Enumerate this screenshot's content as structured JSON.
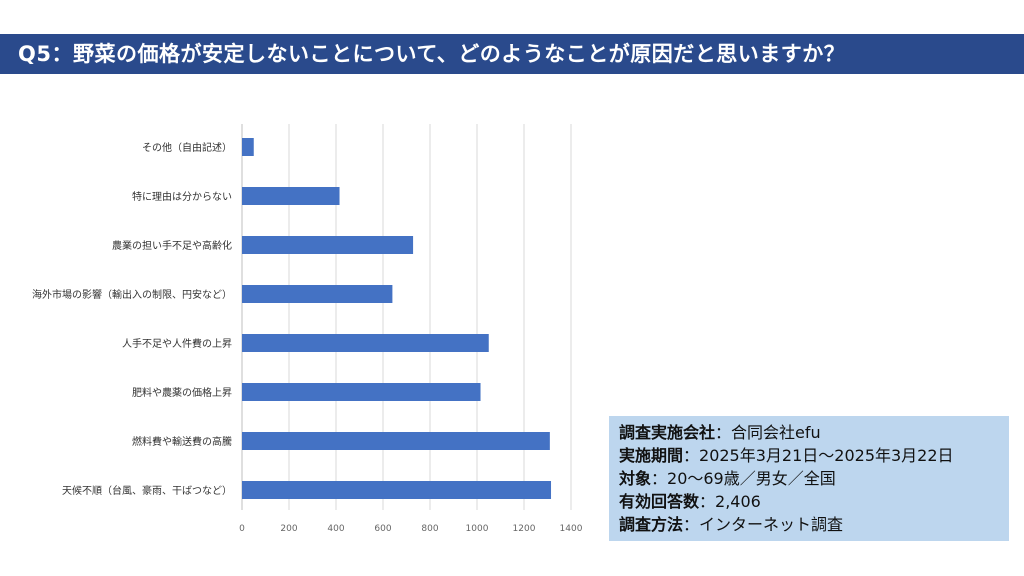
{
  "title": "Q5：野菜の価格が安定しないことについて、どのようなことが原因だと思いますか？",
  "colors": {
    "title_bg": "#2a4a8c",
    "bar": "#4472c4",
    "info_bg": "#bdd6ee"
  },
  "chart_data": {
    "type": "bar",
    "orientation": "horizontal",
    "categories": [
      "その他（自由記述）",
      "特に理由は分からない",
      "農業の担い手不足や高齢化",
      "海外市場の影響（輸出入の制限、円安など）",
      "人手不足や人件費の上昇",
      "肥料や農薬の価格上昇",
      "燃料費や輸送費の高騰",
      "天候不順（台風、豪雨、干ばつなど）"
    ],
    "values": [
      50,
      415,
      728,
      640,
      1050,
      1015,
      1310,
      1315
    ],
    "xlim": [
      0,
      1400
    ],
    "xticks": [
      "0",
      "200",
      "400",
      "600",
      "800",
      "1000",
      "1200",
      "1400"
    ],
    "grid": true,
    "legend": "none"
  },
  "info": [
    {
      "key": "調査実施会社",
      "value": "：合同会社efu"
    },
    {
      "key": "実施期間",
      "value": "：2025年3月21日～2025年3月22日"
    },
    {
      "key": "対象",
      "value": "：20～69歳／男女／全国"
    },
    {
      "key": "有効回答数",
      "value": "：2,406"
    },
    {
      "key": "調査方法",
      "value": "：インターネット調査"
    }
  ]
}
